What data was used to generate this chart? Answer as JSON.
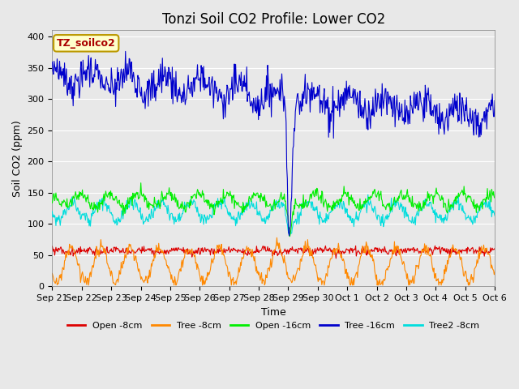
{
  "title": "Tonzi Soil CO2 Profile: Lower CO2",
  "xlabel": "Time",
  "ylabel": "Soil CO2 (ppm)",
  "ylim": [
    0,
    410
  ],
  "yticks": [
    0,
    50,
    100,
    150,
    200,
    250,
    300,
    350,
    400
  ],
  "legend_label": "TZ_soilco2",
  "legend_bg": "#ffffcc",
  "legend_edge": "#bb9900",
  "legend_text_color": "#aa0000",
  "plot_bg": "#e8e8e8",
  "grid_color": "#ffffff",
  "colors": {
    "open_8cm": "#dd0000",
    "tree_8cm": "#ff8800",
    "open_16cm": "#00ee00",
    "tree_16cm": "#0000cc",
    "tree2_8cm": "#00dddd"
  },
  "series_labels": [
    "Open -8cm",
    "Tree -8cm",
    "Open -16cm",
    "Tree -16cm",
    "Tree2 -8cm"
  ],
  "n_points": 720,
  "xtick_labels": [
    "Sep 21",
    "Sep 22",
    "Sep 23",
    "Sep 24",
    "Sep 25",
    "Sep 26",
    "Sep 27",
    "Sep 28",
    "Sep 29",
    "Sep 30",
    "Oct 1",
    "Oct 2",
    "Oct 3",
    "Oct 4",
    "Oct 5",
    "Oct 6"
  ],
  "title_fontsize": 12,
  "axis_label_fontsize": 9,
  "tick_fontsize": 8,
  "legend_fontsize": 8,
  "figwidth": 6.4,
  "figheight": 4.8,
  "dpi": 100
}
